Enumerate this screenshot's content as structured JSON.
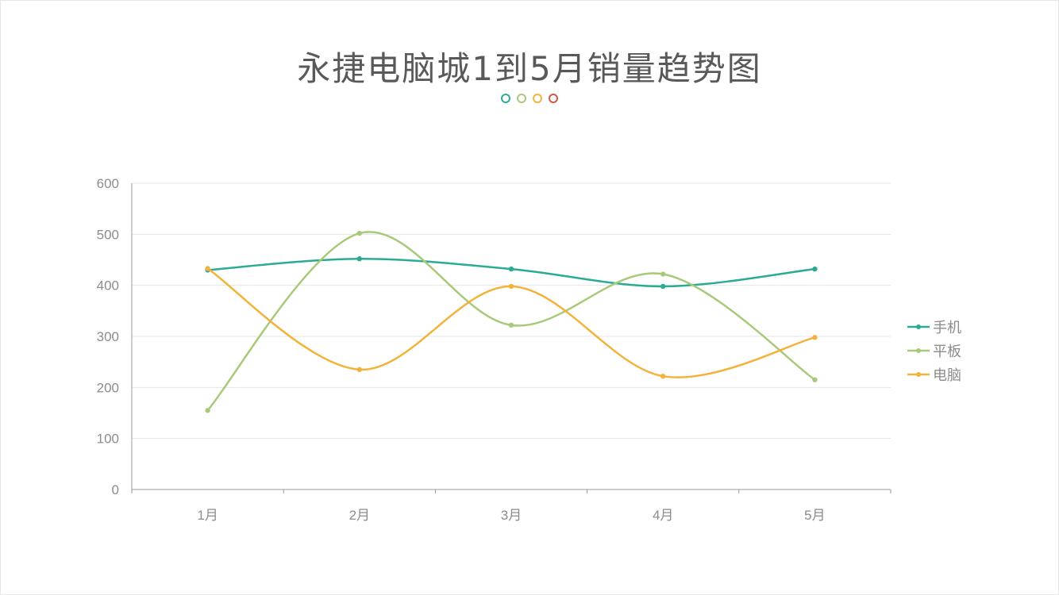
{
  "title": "永捷电脑城1到5月销量趋势图",
  "decor_dot_colors": [
    "#2bab94",
    "#a9c97a",
    "#f3b33a",
    "#d05a43"
  ],
  "chart_data": {
    "type": "line",
    "smooth": true,
    "categories": [
      "1月",
      "2月",
      "3月",
      "4月",
      "5月"
    ],
    "ylim": [
      0,
      600
    ],
    "yticks": [
      0,
      100,
      200,
      300,
      400,
      500,
      600
    ],
    "grid": true,
    "legend_position": "right",
    "series": [
      {
        "name": "手机",
        "color": "#2bab94",
        "values": [
          430,
          452,
          432,
          398,
          432
        ]
      },
      {
        "name": "平板",
        "color": "#a9c97a",
        "values": [
          155,
          502,
          322,
          422,
          215
        ]
      },
      {
        "name": "电脑",
        "color": "#f3b33a",
        "values": [
          433,
          235,
          398,
          222,
          298
        ]
      }
    ]
  }
}
